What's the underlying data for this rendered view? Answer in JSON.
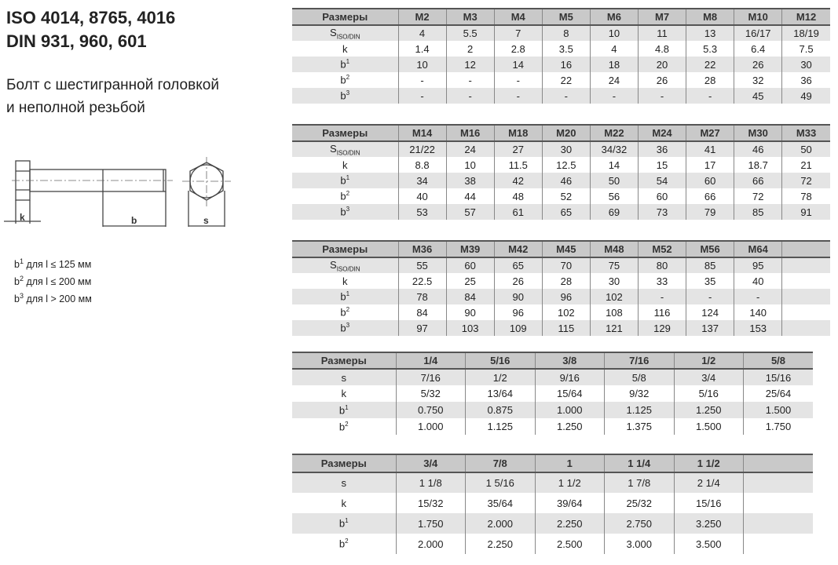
{
  "title": [
    "ISO 4014, 8765, 4016",
    "DIN 931, 960, 601"
  ],
  "subtitle": [
    "Болт с шестигранной головкой",
    "и неполной резьбой"
  ],
  "drawing": {
    "k": "k",
    "b": "b",
    "s": "s"
  },
  "notes": [
    {
      "base": "b",
      "sup": "1",
      "text": " для l ≤ 125 мм"
    },
    {
      "base": "b",
      "sup": "2",
      "text": " для l ≤ 200 мм"
    },
    {
      "base": "b",
      "sup": "3",
      "text": " для l > 200 мм"
    }
  ],
  "tables": [
    {
      "header": "Размеры",
      "cols": [
        "M2",
        "M3",
        "M4",
        "M5",
        "M6",
        "M7",
        "M8",
        "M10",
        "M12"
      ],
      "rows": [
        {
          "label": "S",
          "sub": "ISO/DIN",
          "sup": "",
          "values": [
            "4",
            "5.5",
            "7",
            "8",
            "10",
            "11",
            "13",
            "16/17",
            "18/19"
          ]
        },
        {
          "label": "k",
          "sub": "",
          "sup": "",
          "values": [
            "1.4",
            "2",
            "2.8",
            "3.5",
            "4",
            "4.8",
            "5.3",
            "6.4",
            "7.5"
          ]
        },
        {
          "label": "b",
          "sub": "",
          "sup": "1",
          "values": [
            "10",
            "12",
            "14",
            "16",
            "18",
            "20",
            "22",
            "26",
            "30"
          ]
        },
        {
          "label": "b",
          "sub": "",
          "sup": "2",
          "values": [
            "-",
            "-",
            "-",
            "22",
            "24",
            "26",
            "28",
            "32",
            "36"
          ]
        },
        {
          "label": "b",
          "sub": "",
          "sup": "3",
          "values": [
            "-",
            "-",
            "-",
            "-",
            "-",
            "-",
            "-",
            "45",
            "49"
          ]
        }
      ]
    },
    {
      "header": "Размеры",
      "cols": [
        "M14",
        "M16",
        "M18",
        "M20",
        "M22",
        "M24",
        "M27",
        "M30",
        "M33"
      ],
      "rows": [
        {
          "label": "S",
          "sub": "ISO/DIN",
          "sup": "",
          "values": [
            "21/22",
            "24",
            "27",
            "30",
            "34/32",
            "36",
            "41",
            "46",
            "50"
          ]
        },
        {
          "label": "k",
          "sub": "",
          "sup": "",
          "values": [
            "8.8",
            "10",
            "11.5",
            "12.5",
            "14",
            "15",
            "17",
            "18.7",
            "21"
          ]
        },
        {
          "label": "b",
          "sub": "",
          "sup": "1",
          "values": [
            "34",
            "38",
            "42",
            "46",
            "50",
            "54",
            "60",
            "66",
            "72"
          ]
        },
        {
          "label": "b",
          "sub": "",
          "sup": "2",
          "values": [
            "40",
            "44",
            "48",
            "52",
            "56",
            "60",
            "66",
            "72",
            "78"
          ]
        },
        {
          "label": "b",
          "sub": "",
          "sup": "3",
          "values": [
            "53",
            "57",
            "61",
            "65",
            "69",
            "73",
            "79",
            "85",
            "91"
          ]
        }
      ]
    },
    {
      "header": "Размеры",
      "cols": [
        "M36",
        "M39",
        "M42",
        "M45",
        "M48",
        "M52",
        "M56",
        "M64",
        ""
      ],
      "rows": [
        {
          "label": "S",
          "sub": "ISO/DIN",
          "sup": "",
          "values": [
            "55",
            "60",
            "65",
            "70",
            "75",
            "80",
            "85",
            "95",
            ""
          ]
        },
        {
          "label": "k",
          "sub": "",
          "sup": "",
          "values": [
            "22.5",
            "25",
            "26",
            "28",
            "30",
            "33",
            "35",
            "40",
            ""
          ]
        },
        {
          "label": "b",
          "sub": "",
          "sup": "1",
          "values": [
            "78",
            "84",
            "90",
            "96",
            "102",
            "-",
            "-",
            "-",
            ""
          ]
        },
        {
          "label": "b",
          "sub": "",
          "sup": "2",
          "values": [
            "84",
            "90",
            "96",
            "102",
            "108",
            "116",
            "124",
            "140",
            ""
          ]
        },
        {
          "label": "b",
          "sub": "",
          "sup": "3",
          "values": [
            "97",
            "103",
            "109",
            "115",
            "121",
            "129",
            "137",
            "153",
            ""
          ]
        }
      ]
    },
    {
      "header": "Размеры",
      "cols": [
        "1/4",
        "5/16",
        "3/8",
        "7/16",
        "1/2",
        "5/8"
      ],
      "rows": [
        {
          "label": "s",
          "sub": "",
          "sup": "",
          "values": [
            "7/16",
            "1/2",
            "9/16",
            "5/8",
            "3/4",
            "15/16"
          ]
        },
        {
          "label": "k",
          "sub": "",
          "sup": "",
          "values": [
            "5/32",
            "13/64",
            "15/64",
            "9/32",
            "5/16",
            "25/64"
          ]
        },
        {
          "label": "b",
          "sub": "",
          "sup": "1",
          "values": [
            "0.750",
            "0.875",
            "1.000",
            "1.125",
            "1.250",
            "1.500"
          ]
        },
        {
          "label": "b",
          "sub": "",
          "sup": "2",
          "values": [
            "1.000",
            "1.125",
            "1.250",
            "1.375",
            "1.500",
            "1.750"
          ]
        }
      ]
    },
    {
      "header": "Размеры",
      "cols": [
        "3/4",
        "7/8",
        "1",
        "1 1/4",
        "1 1/2",
        ""
      ],
      "rows": [
        {
          "label": "s",
          "sub": "",
          "sup": "",
          "values": [
            "1 1/8",
            "1 5/16",
            "1 1/2",
            "1 7/8",
            "2 1/4",
            ""
          ]
        },
        {
          "label": "k",
          "sub": "",
          "sup": "",
          "values": [
            "15/32",
            "35/64",
            "39/64",
            "25/32",
            "15/16",
            ""
          ]
        },
        {
          "label": "b",
          "sub": "",
          "sup": "1",
          "values": [
            "1.750",
            "2.000",
            "2.250",
            "2.750",
            "3.250",
            ""
          ]
        },
        {
          "label": "b",
          "sub": "",
          "sup": "2",
          "values": [
            "2.000",
            "2.250",
            "2.500",
            "3.000",
            "3.500",
            ""
          ]
        }
      ]
    }
  ]
}
